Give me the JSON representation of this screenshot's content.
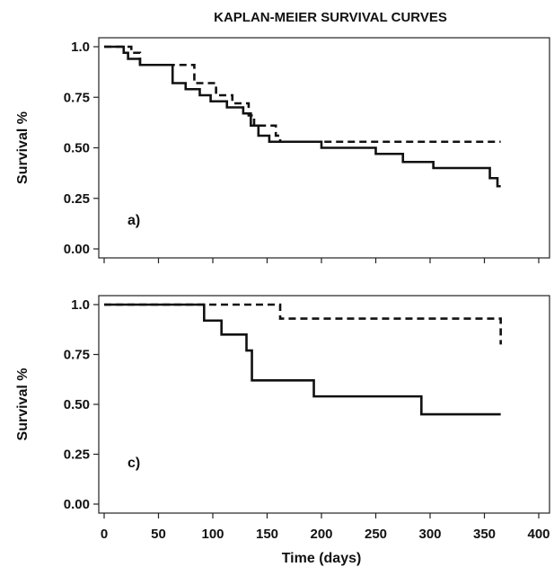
{
  "chart_data": [
    {
      "type": "line",
      "title": "KAPLAN-MEIER SURVIVAL CURVES",
      "panel_label": "a)",
      "xlabel": "",
      "ylabel": "Survival   %",
      "xlim": [
        0,
        400
      ],
      "ylim": [
        0,
        1.0
      ],
      "xticks": [
        0,
        50,
        100,
        150,
        200,
        250,
        300,
        350,
        400
      ],
      "yticks": [
        "0.00",
        "0.25",
        "0.50",
        "0.75",
        "1.0"
      ],
      "grid": false,
      "series": [
        {
          "style": "solid",
          "x": [
            0,
            15,
            18,
            22,
            28,
            33,
            57,
            63,
            75,
            88,
            98,
            113,
            128,
            135,
            142,
            152,
            200,
            250,
            275,
            303,
            355,
            362,
            365
          ],
          "y": [
            1.0,
            1.0,
            0.97,
            0.94,
            0.94,
            0.91,
            0.91,
            0.82,
            0.79,
            0.76,
            0.73,
            0.7,
            0.67,
            0.61,
            0.56,
            0.53,
            0.5,
            0.47,
            0.43,
            0.4,
            0.35,
            0.31,
            0.31
          ]
        },
        {
          "style": "dashed",
          "x": [
            0,
            20,
            25,
            33,
            75,
            83,
            103,
            118,
            133,
            138,
            158,
            162,
            365
          ],
          "y": [
            1.0,
            1.0,
            0.97,
            0.91,
            0.91,
            0.82,
            0.76,
            0.72,
            0.66,
            0.61,
            0.56,
            0.53,
            0.53
          ]
        }
      ]
    },
    {
      "type": "line",
      "panel_label": "c)",
      "xlabel": "Time (days)",
      "ylabel": "Survival   %",
      "xlim": [
        0,
        400
      ],
      "ylim": [
        0,
        1.0
      ],
      "xticks": [
        "0",
        "50",
        "100",
        "150",
        "200",
        "250",
        "300",
        "350",
        "400"
      ],
      "yticks": [
        "0.00",
        "0.25",
        "0.50",
        "0.75",
        "1.0"
      ],
      "grid": false,
      "series": [
        {
          "style": "solid",
          "x": [
            0,
            82,
            92,
            108,
            131,
            136,
            193,
            292,
            365
          ],
          "y": [
            1.0,
            1.0,
            0.92,
            0.85,
            0.77,
            0.62,
            0.54,
            0.45,
            0.45
          ]
        },
        {
          "style": "dashed",
          "x": [
            0,
            119,
            162,
            365
          ],
          "y": [
            1.0,
            1.0,
            0.93,
            0.8
          ]
        }
      ]
    }
  ]
}
